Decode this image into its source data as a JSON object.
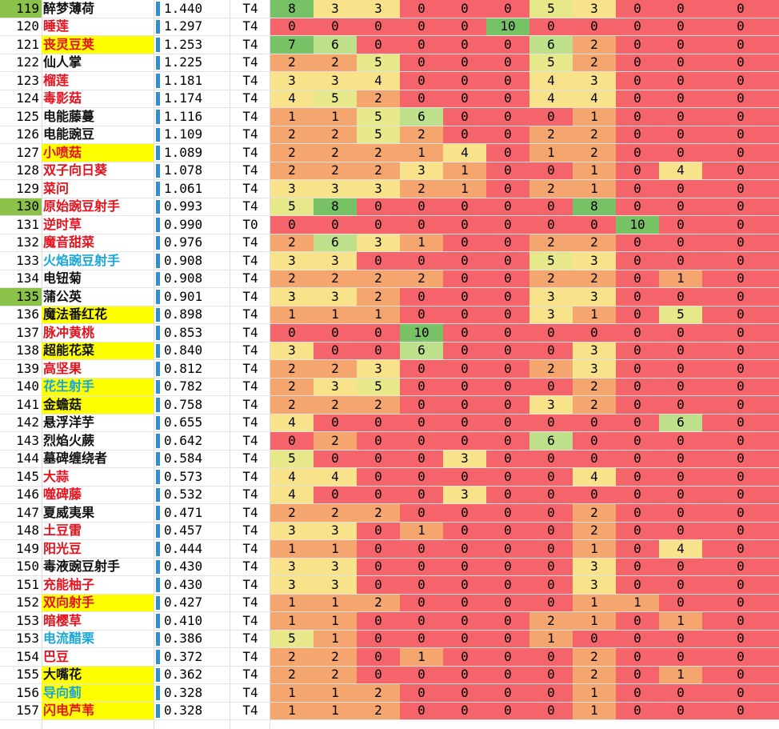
{
  "colors": {
    "bar": "#2f8fd6",
    "name_red": "#e8111c",
    "name_black": "#111111",
    "name_cyan": "#19a7d8",
    "highlight_yellow": "#ffff00",
    "highlight_green": "#8bc34a",
    "scale_red": "#f5636b",
    "scale_orange": "#f5a56e",
    "scale_yellow": "#f9e38a",
    "scale_green": "#78c266"
  },
  "rows": [
    {
      "rank": "119",
      "rank_hl": "green",
      "name": "醉梦薄荷",
      "color": "black",
      "name_hl": "",
      "score": "1.440",
      "bar": 1.0,
      "tier": "T4",
      "values": [
        "8",
        "3",
        "3",
        "0",
        "0",
        "0",
        "5",
        "3",
        "0",
        "0",
        "0"
      ]
    },
    {
      "rank": "120",
      "rank_hl": "",
      "name": "睡莲",
      "color": "red",
      "name_hl": "",
      "score": "1.297",
      "bar": 0.9,
      "tier": "T4",
      "values": [
        "0",
        "0",
        "0",
        "0",
        "0",
        "10",
        "0",
        "0",
        "0",
        "0",
        "0"
      ]
    },
    {
      "rank": "121",
      "rank_hl": "",
      "name": "丧灵豆荚",
      "color": "red",
      "name_hl": "yellow",
      "score": "1.253",
      "bar": 0.87,
      "tier": "T4",
      "values": [
        "7",
        "6",
        "0",
        "0",
        "0",
        "0",
        "6",
        "2",
        "0",
        "0",
        "0"
      ]
    },
    {
      "rank": "122",
      "rank_hl": "",
      "name": "仙人掌",
      "color": "black",
      "name_hl": "",
      "score": "1.225",
      "bar": 0.85,
      "tier": "T4",
      "values": [
        "2",
        "2",
        "5",
        "0",
        "0",
        "0",
        "5",
        "2",
        "0",
        "0",
        "0"
      ]
    },
    {
      "rank": "123",
      "rank_hl": "",
      "name": "榴莲",
      "color": "red",
      "name_hl": "",
      "score": "1.181",
      "bar": 0.82,
      "tier": "T4",
      "values": [
        "3",
        "3",
        "4",
        "0",
        "0",
        "0",
        "4",
        "3",
        "0",
        "0",
        "0"
      ]
    },
    {
      "rank": "124",
      "rank_hl": "",
      "name": "毒影菇",
      "color": "red",
      "name_hl": "",
      "score": "1.174",
      "bar": 0.82,
      "tier": "T4",
      "values": [
        "4",
        "5",
        "2",
        "0",
        "0",
        "0",
        "4",
        "4",
        "0",
        "0",
        "0"
      ]
    },
    {
      "rank": "125",
      "rank_hl": "",
      "name": "电能藤蔓",
      "color": "black",
      "name_hl": "",
      "score": "1.116",
      "bar": 0.78,
      "tier": "T4",
      "values": [
        "1",
        "1",
        "5",
        "6",
        "0",
        "0",
        "0",
        "1",
        "0",
        "0",
        "0"
      ]
    },
    {
      "rank": "126",
      "rank_hl": "",
      "name": "电能豌豆",
      "color": "black",
      "name_hl": "",
      "score": "1.109",
      "bar": 0.77,
      "tier": "T4",
      "values": [
        "2",
        "2",
        "5",
        "2",
        "0",
        "0",
        "2",
        "2",
        "0",
        "0",
        "0"
      ]
    },
    {
      "rank": "127",
      "rank_hl": "",
      "name": "小喷菇",
      "color": "red",
      "name_hl": "yellow",
      "score": "1.089",
      "bar": 0.76,
      "tier": "T4",
      "values": [
        "2",
        "2",
        "2",
        "1",
        "4",
        "0",
        "1",
        "2",
        "0",
        "0",
        "0"
      ]
    },
    {
      "rank": "128",
      "rank_hl": "",
      "name": "双子向日葵",
      "color": "red",
      "name_hl": "",
      "score": "1.078",
      "bar": 0.75,
      "tier": "T4",
      "values": [
        "2",
        "2",
        "2",
        "3",
        "1",
        "0",
        "0",
        "1",
        "0",
        "4",
        "0"
      ]
    },
    {
      "rank": "129",
      "rank_hl": "",
      "name": "菜问",
      "color": "red",
      "name_hl": "",
      "score": "1.061",
      "bar": 0.74,
      "tier": "T4",
      "values": [
        "3",
        "3",
        "3",
        "2",
        "1",
        "0",
        "2",
        "1",
        "0",
        "0",
        "0"
      ]
    },
    {
      "rank": "130",
      "rank_hl": "green",
      "name": "原始豌豆射手",
      "color": "red",
      "name_hl": "",
      "score": "0.993",
      "bar": 0.69,
      "tier": "T4",
      "values": [
        "5",
        "8",
        "0",
        "0",
        "0",
        "0",
        "0",
        "8",
        "0",
        "0",
        "0"
      ]
    },
    {
      "rank": "131",
      "rank_hl": "",
      "name": "逆时草",
      "color": "red",
      "name_hl": "",
      "score": "0.990",
      "bar": 0.69,
      "tier": "T0",
      "values": [
        "0",
        "0",
        "0",
        "0",
        "0",
        "0",
        "0",
        "0",
        "10",
        "0",
        "0"
      ]
    },
    {
      "rank": "132",
      "rank_hl": "",
      "name": "魔音甜菜",
      "color": "red",
      "name_hl": "",
      "score": "0.976",
      "bar": 0.68,
      "tier": "T4",
      "values": [
        "2",
        "6",
        "3",
        "1",
        "0",
        "0",
        "2",
        "2",
        "0",
        "0",
        "0"
      ]
    },
    {
      "rank": "133",
      "rank_hl": "",
      "name": "火焰豌豆射手",
      "color": "cyan",
      "name_hl": "",
      "score": "0.908",
      "bar": 0.63,
      "tier": "T4",
      "values": [
        "3",
        "3",
        "0",
        "0",
        "0",
        "0",
        "5",
        "3",
        "0",
        "0",
        "0"
      ]
    },
    {
      "rank": "134",
      "rank_hl": "",
      "name": "电钮菊",
      "color": "black",
      "name_hl": "",
      "score": "0.908",
      "bar": 0.63,
      "tier": "T4",
      "values": [
        "2",
        "2",
        "2",
        "2",
        "0",
        "0",
        "2",
        "2",
        "0",
        "1",
        "0"
      ]
    },
    {
      "rank": "135",
      "rank_hl": "green",
      "name": "蒲公英",
      "color": "black",
      "name_hl": "",
      "score": "0.901",
      "bar": 0.63,
      "tier": "T4",
      "values": [
        "3",
        "3",
        "2",
        "0",
        "0",
        "0",
        "3",
        "3",
        "0",
        "0",
        "0"
      ]
    },
    {
      "rank": "136",
      "rank_hl": "",
      "name": "魔法番红花",
      "color": "black",
      "name_hl": "yellow",
      "score": "0.898",
      "bar": 0.62,
      "tier": "T4",
      "values": [
        "1",
        "1",
        "1",
        "0",
        "0",
        "0",
        "3",
        "1",
        "0",
        "5",
        "0"
      ]
    },
    {
      "rank": "137",
      "rank_hl": "",
      "name": "脉冲黄桃",
      "color": "red",
      "name_hl": "",
      "score": "0.853",
      "bar": 0.59,
      "tier": "T4",
      "values": [
        "0",
        "0",
        "0",
        "10",
        "0",
        "0",
        "0",
        "0",
        "0",
        "0",
        "0"
      ]
    },
    {
      "rank": "138",
      "rank_hl": "",
      "name": "超能花菜",
      "color": "black",
      "name_hl": "yellow",
      "score": "0.840",
      "bar": 0.58,
      "tier": "T4",
      "values": [
        "3",
        "0",
        "0",
        "6",
        "0",
        "0",
        "0",
        "3",
        "0",
        "0",
        "0"
      ]
    },
    {
      "rank": "139",
      "rank_hl": "",
      "name": "高坚果",
      "color": "red",
      "name_hl": "",
      "score": "0.812",
      "bar": 0.56,
      "tier": "T4",
      "values": [
        "2",
        "2",
        "3",
        "0",
        "0",
        "0",
        "2",
        "3",
        "0",
        "0",
        "0"
      ]
    },
    {
      "rank": "140",
      "rank_hl": "",
      "name": "花生射手",
      "color": "cyan",
      "name_hl": "yellow",
      "score": "0.782",
      "bar": 0.54,
      "tier": "T4",
      "values": [
        "2",
        "3",
        "5",
        "0",
        "0",
        "0",
        "0",
        "2",
        "0",
        "0",
        "0"
      ]
    },
    {
      "rank": "141",
      "rank_hl": "",
      "name": "金蟾菇",
      "color": "black",
      "name_hl": "yellow",
      "score": "0.758",
      "bar": 0.53,
      "tier": "T4",
      "values": [
        "2",
        "2",
        "2",
        "0",
        "0",
        "0",
        "3",
        "2",
        "0",
        "0",
        "0"
      ]
    },
    {
      "rank": "142",
      "rank_hl": "",
      "name": "悬浮洋芋",
      "color": "black",
      "name_hl": "",
      "score": "0.655",
      "bar": 0.45,
      "tier": "T4",
      "values": [
        "4",
        "0",
        "0",
        "0",
        "0",
        "0",
        "0",
        "0",
        "0",
        "6",
        "0"
      ]
    },
    {
      "rank": "143",
      "rank_hl": "",
      "name": "烈焰火蕨",
      "color": "black",
      "name_hl": "",
      "score": "0.642",
      "bar": 0.45,
      "tier": "T4",
      "values": [
        "0",
        "2",
        "0",
        "0",
        "0",
        "0",
        "6",
        "0",
        "0",
        "0",
        "0"
      ]
    },
    {
      "rank": "144",
      "rank_hl": "",
      "name": "墓碑缠绕者",
      "color": "black",
      "name_hl": "",
      "score": "0.584",
      "bar": 0.41,
      "tier": "T4",
      "values": [
        "5",
        "0",
        "0",
        "0",
        "3",
        "0",
        "0",
        "0",
        "0",
        "0",
        "0"
      ]
    },
    {
      "rank": "145",
      "rank_hl": "",
      "name": "大蒜",
      "color": "red",
      "name_hl": "",
      "score": "0.573",
      "bar": 0.4,
      "tier": "T4",
      "values": [
        "4",
        "4",
        "0",
        "0",
        "0",
        "0",
        "0",
        "4",
        "0",
        "0",
        "0"
      ]
    },
    {
      "rank": "146",
      "rank_hl": "",
      "name": "噬碑藤",
      "color": "red",
      "name_hl": "",
      "score": "0.532",
      "bar": 0.37,
      "tier": "T4",
      "values": [
        "4",
        "0",
        "0",
        "0",
        "3",
        "0",
        "0",
        "0",
        "0",
        "0",
        "0"
      ]
    },
    {
      "rank": "147",
      "rank_hl": "",
      "name": "夏威夷果",
      "color": "black",
      "name_hl": "",
      "score": "0.471",
      "bar": 0.33,
      "tier": "T4",
      "values": [
        "2",
        "2",
        "2",
        "0",
        "0",
        "0",
        "0",
        "2",
        "0",
        "0",
        "0"
      ]
    },
    {
      "rank": "148",
      "rank_hl": "",
      "name": "土豆雷",
      "color": "red",
      "name_hl": "",
      "score": "0.457",
      "bar": 0.32,
      "tier": "T4",
      "values": [
        "3",
        "3",
        "0",
        "1",
        "0",
        "0",
        "0",
        "2",
        "0",
        "0",
        "0"
      ]
    },
    {
      "rank": "149",
      "rank_hl": "",
      "name": "阳光豆",
      "color": "red",
      "name_hl": "",
      "score": "0.444",
      "bar": 0.31,
      "tier": "T4",
      "values": [
        "1",
        "1",
        "0",
        "0",
        "0",
        "0",
        "0",
        "1",
        "0",
        "4",
        "0"
      ]
    },
    {
      "rank": "150",
      "rank_hl": "",
      "name": "毒液豌豆射手",
      "color": "black",
      "name_hl": "",
      "score": "0.430",
      "bar": 0.3,
      "tier": "T4",
      "values": [
        "3",
        "3",
        "0",
        "0",
        "0",
        "0",
        "0",
        "3",
        "0",
        "0",
        "0"
      ]
    },
    {
      "rank": "151",
      "rank_hl": "",
      "name": "充能柚子",
      "color": "red",
      "name_hl": "",
      "score": "0.430",
      "bar": 0.3,
      "tier": "T4",
      "values": [
        "3",
        "3",
        "0",
        "0",
        "0",
        "0",
        "0",
        "3",
        "0",
        "0",
        "0"
      ]
    },
    {
      "rank": "152",
      "rank_hl": "",
      "name": "双向射手",
      "color": "red",
      "name_hl": "yellow",
      "score": "0.427",
      "bar": 0.3,
      "tier": "T4",
      "values": [
        "1",
        "1",
        "2",
        "0",
        "0",
        "0",
        "0",
        "1",
        "1",
        "0",
        "0"
      ]
    },
    {
      "rank": "153",
      "rank_hl": "",
      "name": "暗樱草",
      "color": "red",
      "name_hl": "",
      "score": "0.410",
      "bar": 0.28,
      "tier": "T4",
      "values": [
        "1",
        "1",
        "0",
        "0",
        "0",
        "0",
        "2",
        "1",
        "0",
        "1",
        "0"
      ]
    },
    {
      "rank": "153",
      "rank_hl": "",
      "name": "电流醋栗",
      "color": "cyan",
      "name_hl": "",
      "score": "0.386",
      "bar": 0.27,
      "tier": "T4",
      "values": [
        "5",
        "1",
        "0",
        "0",
        "0",
        "0",
        "1",
        "0",
        "0",
        "0",
        "0"
      ]
    },
    {
      "rank": "154",
      "rank_hl": "",
      "name": "巴豆",
      "color": "red",
      "name_hl": "",
      "score": "0.372",
      "bar": 0.26,
      "tier": "T4",
      "values": [
        "2",
        "2",
        "0",
        "1",
        "0",
        "0",
        "0",
        "2",
        "0",
        "0",
        "0"
      ]
    },
    {
      "rank": "155",
      "rank_hl": "",
      "name": "大嘴花",
      "color": "black",
      "name_hl": "yellow",
      "score": "0.362",
      "bar": 0.25,
      "tier": "T4",
      "values": [
        "2",
        "2",
        "0",
        "0",
        "0",
        "0",
        "0",
        "2",
        "0",
        "1",
        "0"
      ]
    },
    {
      "rank": "156",
      "rank_hl": "",
      "name": "导向蓟",
      "color": "cyan",
      "name_hl": "yellow",
      "score": "0.328",
      "bar": 0.23,
      "tier": "T4",
      "values": [
        "1",
        "1",
        "2",
        "0",
        "0",
        "0",
        "0",
        "1",
        "0",
        "0",
        "0"
      ]
    },
    {
      "rank": "157",
      "rank_hl": "",
      "name": "闪电芦苇",
      "color": "red",
      "name_hl": "yellow",
      "score": "0.328",
      "bar": 0.23,
      "tier": "T4",
      "values": [
        "1",
        "1",
        "2",
        "0",
        "0",
        "0",
        "0",
        "1",
        "0",
        "0",
        "0"
      ]
    }
  ]
}
